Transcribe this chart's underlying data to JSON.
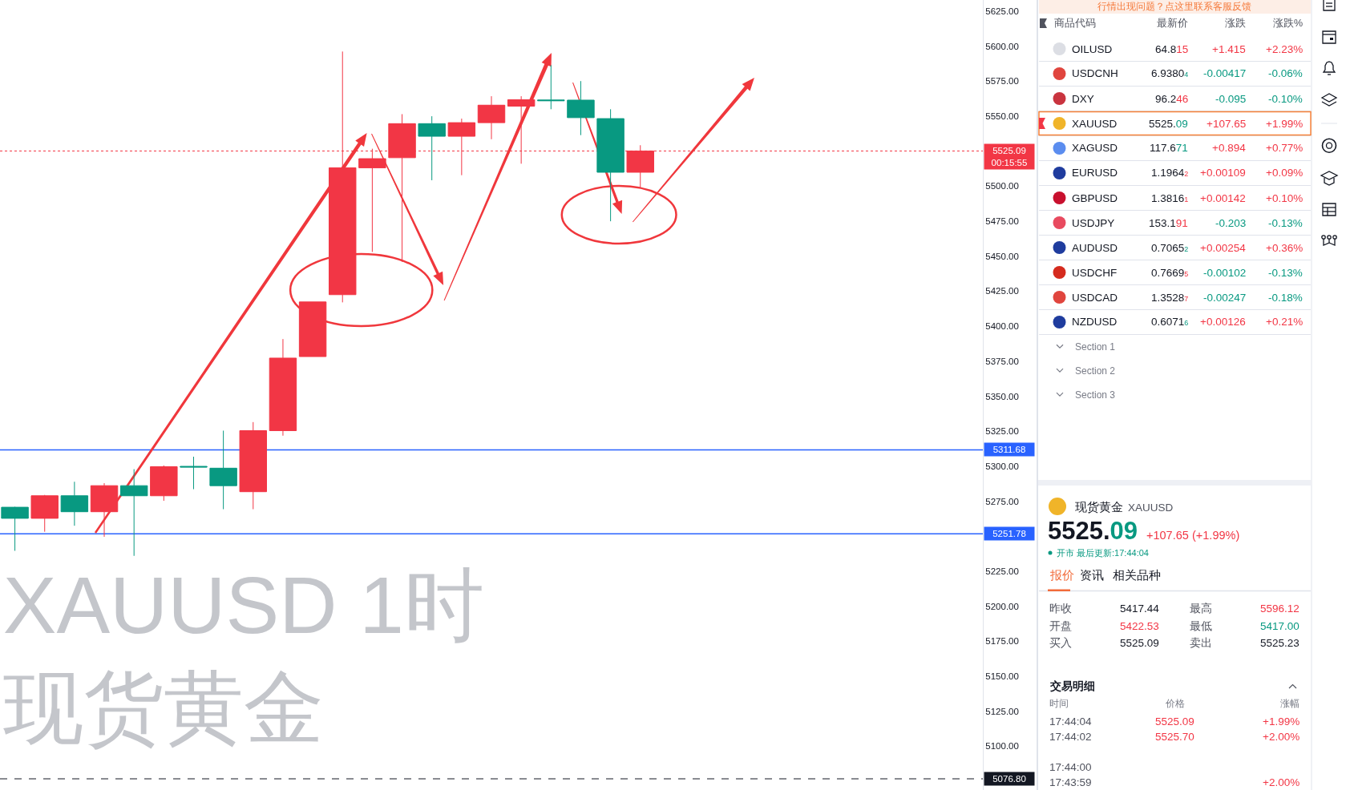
{
  "chart_data": [
    {
      "type": "candlestick",
      "categories": [
        null,
        null,
        null,
        null,
        null,
        null,
        null,
        null,
        null,
        null,
        null,
        null,
        null,
        null,
        null,
        null,
        null,
        null,
        null,
        null,
        null,
        null,
        null,
        null,
        null,
        null,
        null,
        null,
        null,
        null,
        null,
        null,
        null
      ],
      "ohlc": [
        [
          5270.7,
          5271.0,
          5239.6,
          5262.8
        ],
        [
          5262.8,
          5279.5,
          5253.2,
          5278.9
        ],
        [
          5278.9,
          5288.9,
          5257.5,
          5267.5
        ],
        [
          5267.5,
          5287.9,
          5249.6,
          5286.1
        ],
        [
          5286.1,
          5297.9,
          5236.0,
          5278.9
        ],
        [
          5278.9,
          5300.5,
          5275.3,
          5299.7
        ],
        [
          5299.9,
          5306.8,
          5283.6,
          5299.4
        ],
        [
          5298.6,
          5325.4,
          5269.3,
          5286.1
        ],
        [
          5281.8,
          5331.5,
          5269.3,
          5325.4
        ],
        [
          5325.4,
          5390.8,
          5321.8,
          5377.2
        ],
        [
          5378.3,
          5417.3,
          5378.3,
          5417.3
        ],
        [
          5422.5,
          5596.1,
          5417.0,
          5513.1
        ],
        [
          5513.1,
          5526.7,
          5453.0,
          5519.6
        ],
        [
          5520.3,
          5551.4,
          5445.9,
          5544.6
        ],
        [
          5544.6,
          5549.9,
          5504.2,
          5535.6
        ],
        [
          5535.6,
          5548.2,
          5507.8,
          5545.3
        ],
        [
          5545.3,
          5564.2,
          5533.5,
          5557.8
        ],
        [
          5557.1,
          5564.2,
          5516.0,
          5561.7
        ],
        [
          5561.5,
          5586.4,
          5554.9,
          5561.0
        ],
        [
          5561.4,
          5575.0,
          5536.4,
          5548.9
        ],
        [
          5548.2,
          5554.9,
          5474.9,
          5509.9
        ],
        [
          5509.9,
          5529.2,
          5498.8,
          5525.1
        ],
        null,
        null,
        null,
        null,
        null,
        null,
        null,
        null,
        null,
        null,
        null
      ],
      "colors": [
        "#089981",
        "#f23645",
        "#089981",
        "#f23645",
        "#089981",
        "#f23645",
        "#089981",
        "#089981",
        "#f23645",
        "#f23645",
        "#f23645",
        "#f23645",
        "#f23645",
        "#f23645",
        "#089981",
        "#f23645",
        "#f23645",
        "#f23645",
        "#089981",
        "#089981",
        "#089981",
        "#f23645",
        null,
        null,
        null,
        null,
        null,
        null,
        null,
        null,
        null,
        null,
        null
      ],
      "ylim": [
        5068.8,
        5632.9
      ],
      "yticks": [
        {
          "value": 5100,
          "label": "5100.00"
        },
        {
          "value": 5125,
          "label": "5125.00"
        },
        {
          "value": 5150,
          "label": "5150.00"
        },
        {
          "value": 5175,
          "label": "5175.00"
        },
        {
          "value": 5200,
          "label": "5200.00"
        },
        {
          "value": 5225,
          "label": "5225.00"
        },
        {
          "value": 5275,
          "label": "5275.00"
        },
        {
          "value": 5300,
          "label": "5300.00"
        },
        {
          "value": 5325,
          "label": "5325.00"
        },
        {
          "value": 5350,
          "label": "5350.00"
        },
        {
          "value": 5375,
          "label": "5375.00"
        },
        {
          "value": 5400,
          "label": "5400.00"
        },
        {
          "value": 5425,
          "label": "5425.00"
        },
        {
          "value": 5450,
          "label": "5450.00"
        },
        {
          "value": 5475,
          "label": "5475.00"
        },
        {
          "value": 5500,
          "label": "5500.00"
        },
        {
          "value": 5550,
          "label": "5550.00"
        },
        {
          "value": 5575,
          "label": "5575.00"
        },
        {
          "value": 5600,
          "label": "5600.00"
        },
        {
          "value": 5625,
          "label": "5625.00"
        }
      ],
      "tick_labels": "y",
      "ref_lines": [
        {
          "axis": "y",
          "value": 5525.09,
          "label": "5525.09\n00:15:55",
          "color": "#f23645",
          "line_style": "dotted"
        },
        {
          "axis": "y",
          "value": 5311.68,
          "label": "5311.68",
          "color": "#2962ff",
          "line_style": "solid"
        },
        {
          "axis": "y",
          "value": 5251.78,
          "label": "5251.78",
          "color": "#2962ff",
          "line_style": "solid"
        },
        {
          "axis": "y",
          "value": 5076.8,
          "label": "5076.80",
          "color": "#131722",
          "line_style": "dashed"
        }
      ],
      "annotations": [
        "XAUUSD 1时",
        "现货黄金"
      ]
    },
    {
      "type": "other",
      "title": "行情出现问题？点这里联系客服反馈",
      "xlabel": "商品代码",
      "categories": [
        "OILUSD",
        "USDCNH",
        "DXY",
        "XAUUSD",
        "XAGUSD",
        "EURUSD",
        "GBPUSD",
        "USDJPY",
        "AUDUSD",
        "USDCHF",
        "USDCAD",
        "NZDUSD"
      ],
      "series": [
        {
          "name": "最新价",
          "values": [
            64.815,
            6.93804,
            96.246,
            5525.09,
            117.671,
            1.19642,
            1.38161,
            153.191,
            0.70652,
            0.76695,
            1.35287,
            0.60716
          ],
          "value_labels": [
            "64.815",
            "6.93804",
            "96.246",
            "5525.09",
            "117.671",
            "1.19642",
            "1.38161",
            "153.191",
            "0.70652",
            "0.76695",
            "1.35287",
            "0.60716"
          ],
          "colors": [
            "#f23645",
            "#089981",
            "#f23645",
            "#089981",
            "#089981",
            "#f23645",
            "#f23645",
            "#f23645",
            "#089981",
            "#f23645",
            "#f23645",
            "#089981"
          ]
        },
        {
          "name": "涨跌",
          "values": [
            1.415,
            -0.00417,
            -0.095,
            107.65,
            0.894,
            0.00109,
            0.00142,
            -0.203,
            0.00254,
            -0.00102,
            -0.00247,
            0.00126
          ],
          "value_labels": [
            "+1.415",
            "-0.00417",
            "-0.095",
            "+107.65",
            "+0.894",
            "+0.00109",
            "+0.00142",
            "-0.203",
            "+0.00254",
            "-0.00102",
            "-0.00247",
            "+0.00126"
          ],
          "colors": [
            "#f23645",
            "#089981",
            "#089981",
            "#f23645",
            "#f23645",
            "#f23645",
            "#f23645",
            "#089981",
            "#f23645",
            "#089981",
            "#089981",
            "#f23645"
          ]
        },
        {
          "name": "涨跌%",
          "values": [
            2.23,
            -0.06,
            -0.1,
            1.99,
            0.77,
            0.09,
            0.1,
            -0.13,
            0.36,
            -0.13,
            -0.18,
            0.21
          ],
          "value_labels": [
            "+2.23%",
            "-0.06%",
            "-0.10%",
            "+1.99%",
            "+0.77%",
            "+0.09%",
            "+0.10%",
            "-0.13%",
            "+0.36%",
            "-0.13%",
            "-0.18%",
            "+0.21%"
          ],
          "colors": [
            "#f23645",
            "#089981",
            "#089981",
            "#f23645",
            "#f23645",
            "#f23645",
            "#f23645",
            "#089981",
            "#f23645",
            "#089981",
            "#089981",
            "#f23645"
          ]
        }
      ],
      "annotations": [
        "Section 1",
        "Section 2",
        "Section 3"
      ]
    },
    {
      "type": "other",
      "title": "现货黄金",
      "subtitle": "XAUUSD",
      "values": [
        5525.09,
        107.65,
        1.99
      ],
      "value_labels": [
        "5525.09",
        "+107.65",
        "(+1.99%)"
      ],
      "colors": [
        "#089981",
        "#f23645",
        "#f23645"
      ],
      "annotations": [
        "开市 最后更新:17:44:04",
        "报价",
        "资讯",
        "相关品种"
      ]
    },
    {
      "type": "other",
      "categories": [
        "昨收",
        "开盘",
        "买入"
      ],
      "values": [
        5417.44,
        5422.53,
        5525.09
      ],
      "value_labels": [
        "5417.44",
        "5422.53",
        "5525.09"
      ],
      "colors": [
        "#131722",
        "#f23645",
        "#131722"
      ]
    },
    {
      "type": "other",
      "categories": [
        "最高",
        "最低",
        "卖出"
      ],
      "values": [
        5596.12,
        5417.0,
        5525.23
      ],
      "value_labels": [
        "5596.12",
        "5417.00",
        "5525.23"
      ],
      "colors": [
        "#f23645",
        "#089981",
        "#131722"
      ]
    },
    {
      "type": "other",
      "title": "交易明细",
      "xlabel": "时间",
      "categories": [
        "17:44:04",
        "17:44:02",
        null,
        "17:44:00",
        "17:43:59"
      ],
      "series": [
        {
          "name": "价格",
          "values": [
            5525.09,
            5525.7,
            null,
            null,
            null
          ],
          "value_labels": [
            "5525.09",
            "5525.70",
            null,
            null,
            null
          ],
          "colors": [
            "#f23645",
            "#f23645",
            "#f23645",
            "#f23645",
            "#f23645"
          ]
        },
        {
          "name": "涨幅",
          "values": [
            1.99,
            2.0,
            null,
            null,
            2.0
          ],
          "value_labels": [
            "+1.99%",
            "+2.00%",
            null,
            null,
            "+2.00%"
          ],
          "colors": [
            "#f23645",
            "#f23645",
            "#f23645",
            "#f23645",
            "#f23645"
          ]
        }
      ]
    }
  ]
}
